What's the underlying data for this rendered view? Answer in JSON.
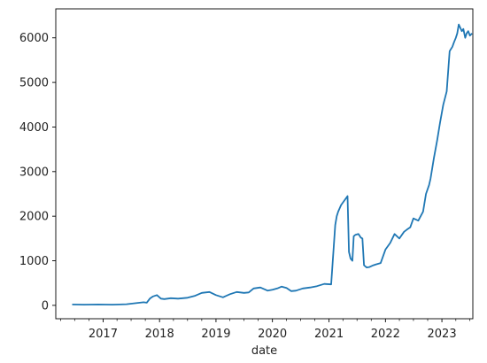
{
  "chart_data": {
    "type": "line",
    "title": "",
    "xlabel": "date",
    "ylabel": "",
    "grid": false,
    "legend": "none",
    "line_color": "#1f77b4",
    "xlim": [
      "2016-03-01",
      "2023-07-20"
    ],
    "ylim": [
      -300,
      6650
    ],
    "x_ticks": [
      "2017",
      "2018",
      "2019",
      "2020",
      "2021",
      "2022",
      "2023"
    ],
    "y_ticks": [
      0,
      1000,
      2000,
      3000,
      4000,
      5000,
      6000
    ],
    "series": [
      {
        "x": [
          "2016-06-15",
          "2016-09-01",
          "2016-12-01",
          "2017-03-01",
          "2017-06-01",
          "2017-08-01",
          "2017-09-20",
          "2017-10-10",
          "2017-10-30",
          "2017-11-20",
          "2017-12-15",
          "2018-01-10",
          "2018-02-01",
          "2018-03-15",
          "2018-05-01",
          "2018-07-01",
          "2018-08-15",
          "2018-10-01",
          "2018-11-20",
          "2019-01-01",
          "2019-02-15",
          "2019-04-01",
          "2019-05-15",
          "2019-07-01",
          "2019-08-01",
          "2019-09-01",
          "2019-10-15",
          "2019-12-01",
          "2020-01-01",
          "2020-02-01",
          "2020-03-01",
          "2020-04-01",
          "2020-05-01",
          "2020-06-01",
          "2020-07-15",
          "2020-09-01",
          "2020-10-15",
          "2020-12-01",
          "2021-01-15",
          "2021-02-10",
          "2021-02-20",
          "2021-03-01",
          "2021-03-20",
          "2021-04-10",
          "2021-05-01",
          "2021-05-10",
          "2021-05-20",
          "2021-06-01",
          "2021-06-10",
          "2021-06-20",
          "2021-07-10",
          "2021-07-25",
          "2021-08-05",
          "2021-08-15",
          "2021-09-01",
          "2021-09-20",
          "2021-10-15",
          "2021-11-01",
          "2021-12-01",
          "2022-01-01",
          "2022-02-01",
          "2022-03-01",
          "2022-04-01",
          "2022-05-01",
          "2022-05-20",
          "2022-06-10",
          "2022-07-01",
          "2022-08-01",
          "2022-09-01",
          "2022-09-20",
          "2022-10-10",
          "2022-10-20",
          "2022-11-10",
          "2022-12-01",
          "2022-12-20",
          "2023-01-10",
          "2023-02-01",
          "2023-02-20",
          "2023-03-10",
          "2023-03-20",
          "2023-04-01",
          "2023-04-10",
          "2023-04-20",
          "2023-05-10",
          "2023-05-20",
          "2023-06-01",
          "2023-06-10",
          "2023-06-20",
          "2023-07-01",
          "2023-07-15"
        ],
        "y": [
          20,
          15,
          20,
          15,
          25,
          50,
          70,
          60,
          150,
          200,
          230,
          150,
          140,
          160,
          150,
          170,
          210,
          280,
          300,
          230,
          180,
          250,
          300,
          280,
          290,
          380,
          400,
          330,
          350,
          380,
          420,
          390,
          320,
          330,
          380,
          400,
          430,
          480,
          470,
          1800,
          2000,
          2100,
          2250,
          2350,
          2450,
          1200,
          1050,
          1000,
          1550,
          1580,
          1600,
          1520,
          1500,
          900,
          850,
          860,
          900,
          920,
          950,
          1250,
          1400,
          1600,
          1500,
          1650,
          1700,
          1750,
          1950,
          1900,
          2100,
          2500,
          2700,
          2850,
          3300,
          3700,
          4100,
          4500,
          4800,
          5700,
          5800,
          5900,
          6000,
          6100,
          6300,
          6150,
          6200,
          6000,
          6100,
          6150,
          6050,
          6100
        ]
      }
    ]
  }
}
